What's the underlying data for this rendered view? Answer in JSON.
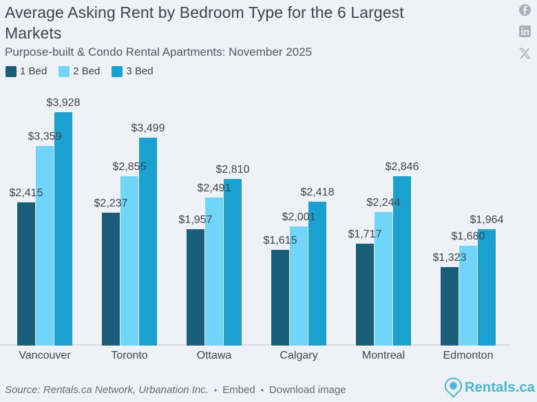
{
  "header": {
    "title": "Average Asking Rent by Bedroom Type for the 6 Largest Markets",
    "subtitle": "Purpose-built & Condo Rental Apartments: November 2025"
  },
  "social": {
    "icons": [
      "facebook",
      "linkedin",
      "x"
    ]
  },
  "chart_data": {
    "type": "bar",
    "title": "Average Asking Rent by Bedroom Type for the 6 Largest Markets",
    "subtitle": "Purpose-built & Condo Rental Apartments: November 2025",
    "categories": [
      "Vancouver",
      "Toronto",
      "Ottawa",
      "Calgary",
      "Montreal",
      "Edmonton"
    ],
    "series": [
      {
        "name": "1 Bed",
        "color": "#1a5d7b",
        "values": [
          2415,
          2237,
          1957,
          1615,
          1717,
          1323
        ],
        "labels": [
          "$2,415",
          "$2,237",
          "$1,957",
          "$1,615",
          "$1,717",
          "$1,323"
        ]
      },
      {
        "name": "2 Bed",
        "color": "#6fd5f9",
        "values": [
          3359,
          2855,
          2491,
          2001,
          2244,
          1680
        ],
        "labels": [
          "$3,359",
          "$2,855",
          "$2,491",
          "$2,001",
          "$2,244",
          "$1,680"
        ]
      },
      {
        "name": "3 Bed",
        "color": "#1ba1cf",
        "values": [
          3928,
          3499,
          2810,
          2418,
          2846,
          1964
        ],
        "labels": [
          "$3,928",
          "$3,499",
          "$2,810",
          "$2,418",
          "$2,846",
          "$1,964"
        ]
      }
    ],
    "ylim": [
      0,
      3928
    ],
    "value_prefix": "$",
    "data_labels": true,
    "grid": false,
    "legend_position": "top-left"
  },
  "footer": {
    "source": "Source: Rentals.ca Network, Urbanation Inc.",
    "separator": "•",
    "links": [
      {
        "label": "Embed"
      },
      {
        "label": "Download image"
      }
    ],
    "logo_text": "Rentals.ca",
    "logo_color": "#45b6d8"
  },
  "colors": {
    "background": "#eef1f5",
    "axis_line": "#d9dce1",
    "text_primary": "#3d444c",
    "text_secondary": "#51585f",
    "footer_text": "#636c76",
    "social_icon": "#a9b0b6"
  }
}
